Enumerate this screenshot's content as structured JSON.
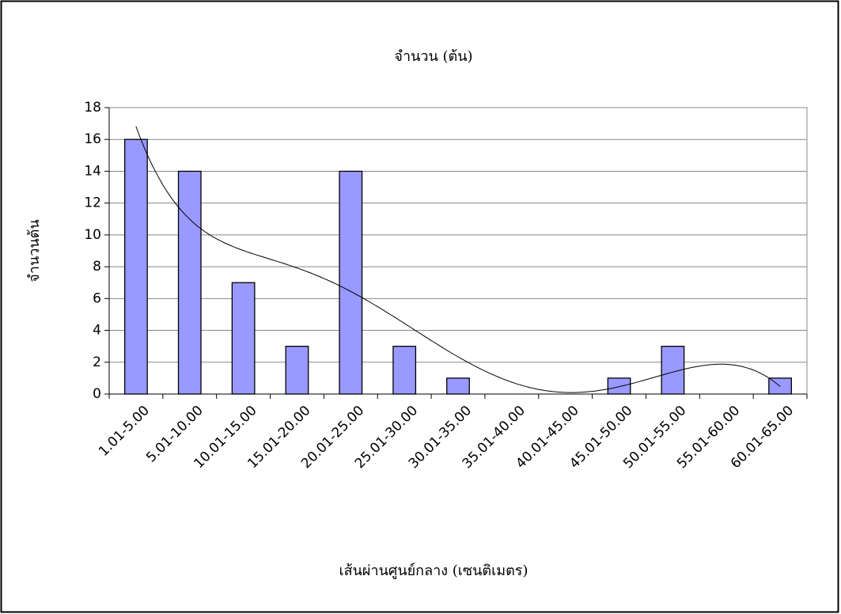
{
  "chart_data": {
    "type": "bar",
    "title": "จำนวน (ต้น)",
    "x_label": "เส้นผ่านศูนย์กลาง (เซนติเมตร)",
    "y_label": "จำนวนต้น",
    "categories": [
      "1.01-5.00",
      "5.01-10.00",
      "10.01-15.00",
      "15.01-20.00",
      "20.01-25.00",
      "25.01-30.00",
      "30.01-35.00",
      "35.01-40.00",
      "40.01-45.00",
      "45.01-50.00",
      "50.01-55.00",
      "55.01-60.00",
      "60.01-65.00"
    ],
    "values": [
      16,
      14,
      7,
      3,
      14,
      3,
      1,
      0,
      0,
      1,
      3,
      0,
      1
    ],
    "color": "#9999ff",
    "ylim": [
      0,
      18
    ],
    "yticks": [
      0,
      2,
      4,
      6,
      8,
      10,
      12,
      14,
      16,
      18
    ],
    "grid": true,
    "trendline": {
      "type": "polynomial",
      "order": 6
    }
  }
}
